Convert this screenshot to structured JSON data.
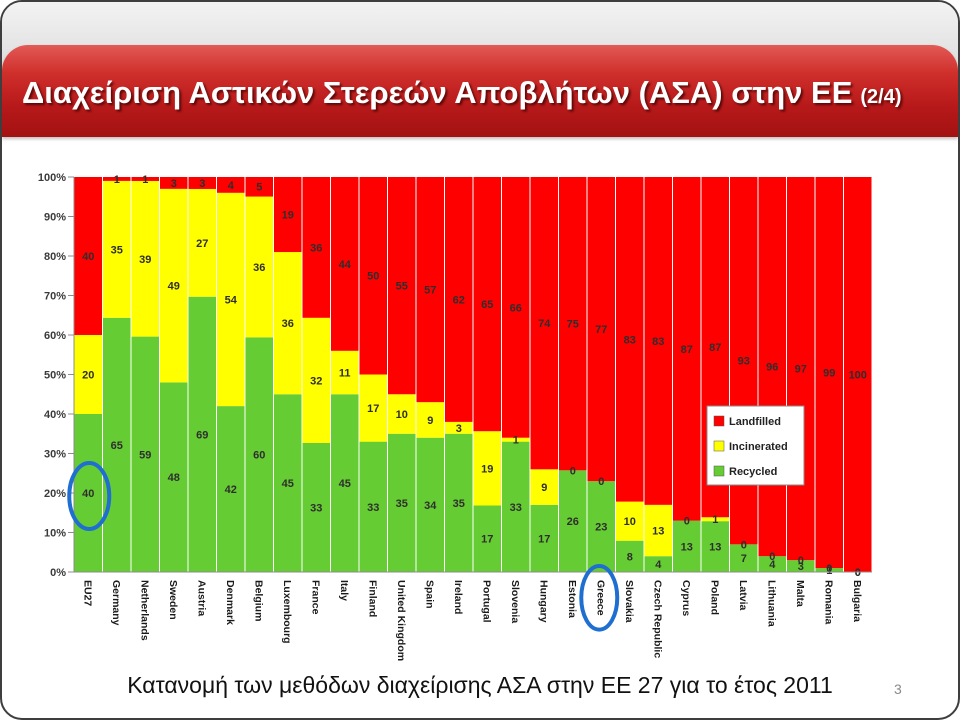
{
  "slide": {
    "title": "Διαχείριση Αστικών Στερεών Αποβλήτων (ΑΣΑ) στην ΕΕ",
    "title_suffix": "(2/4)",
    "caption": "Κατανομή των μεθόδων διαχείρισης ΑΣΑ στην ΕΕ 27 για το έτος 2011",
    "page_number": "3"
  },
  "chart_data": {
    "type": "bar",
    "stacked": true,
    "percent_stacked": true,
    "categories": [
      "EU27",
      "Germany",
      "Netherlands",
      "Sweden",
      "Austria",
      "Denmark",
      "Belgium",
      "Luxembourg",
      "France",
      "Italy",
      "Finland",
      "United Kingdom",
      "Spain",
      "Ireland",
      "Portugal",
      "Slovenia",
      "Hungary",
      "Estonia",
      "Greece",
      "Slovakia",
      "Czech Republic",
      "Cyprus",
      "Poland",
      "Latvia",
      "Lithuania",
      "Malta",
      "Romania",
      "Bulgaria"
    ],
    "series": [
      {
        "name": "Landfilled",
        "color": "#ff0000",
        "values": [
          40,
          1,
          1,
          3,
          3,
          4,
          5,
          19,
          36,
          44,
          50,
          55,
          57,
          62,
          65,
          66,
          74,
          75,
          77,
          83,
          83,
          87,
          87,
          93,
          96,
          97,
          99,
          100
        ]
      },
      {
        "name": "Incinerated",
        "color": "#ffff00",
        "values": [
          20,
          35,
          39,
          49,
          27,
          54,
          36,
          36,
          32,
          11,
          17,
          10,
          9,
          3,
          19,
          1,
          9,
          0,
          0,
          10,
          13,
          0,
          1,
          0,
          0,
          0,
          0,
          0
        ]
      },
      {
        "name": "Recycled",
        "color": "#66cc33",
        "values": [
          40,
          65,
          59,
          48,
          69,
          42,
          60,
          45,
          33,
          45,
          33,
          35,
          34,
          35,
          17,
          33,
          17,
          26,
          23,
          8,
          4,
          13,
          13,
          7,
          4,
          3,
          1,
          0
        ]
      }
    ],
    "ylim": [
      0,
      100
    ],
    "yticks": [
      0,
      10,
      20,
      30,
      40,
      50,
      60,
      70,
      80,
      90,
      100
    ],
    "ytick_labels": [
      "0%",
      "10%",
      "20%",
      "30%",
      "40%",
      "50%",
      "60%",
      "70%",
      "80%",
      "90%",
      "100%"
    ],
    "data_labels": true,
    "grid": false,
    "legend_position": "inside-right",
    "highlight_color": "#1f6fd1",
    "highlights": {
      "value_labels": [
        {
          "category": 0,
          "series": 2
        }
      ],
      "category_labels": [
        18
      ]
    }
  }
}
